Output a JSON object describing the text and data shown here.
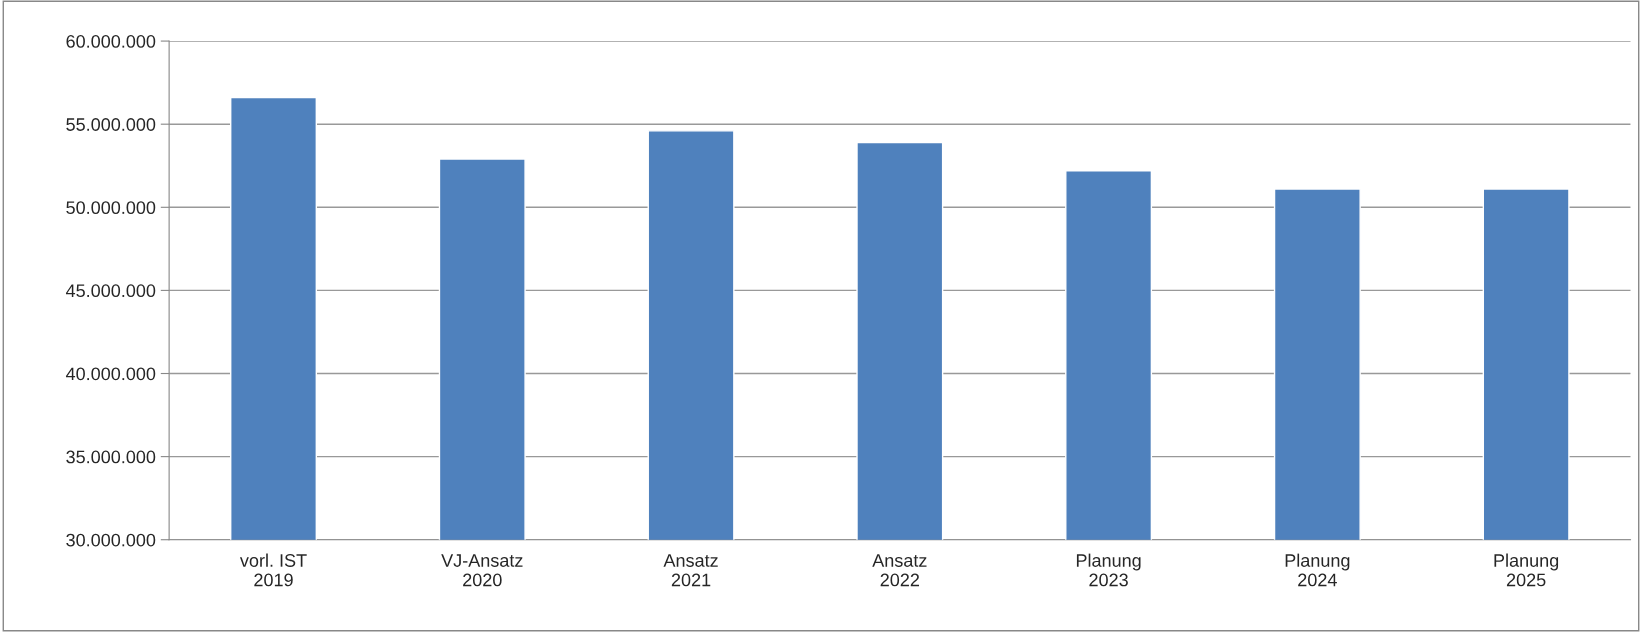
{
  "chart_data": {
    "type": "bar",
    "categories": [
      "vorl. IST\n2019",
      "VJ-Ansatz\n2020",
      "Ansatz\n2021",
      "Ansatz\n2022",
      "Planung\n2023",
      "Planung\n2024",
      "Planung\n2025"
    ],
    "values": [
      56600000,
      52900000,
      54600000,
      53900000,
      52200000,
      51100000,
      51100000
    ],
    "color": "#4f81bd",
    "ylim": [
      30000000,
      60000000
    ],
    "yticks": [
      {
        "value": 30000000,
        "label": "30.000.000"
      },
      {
        "value": 35000000,
        "label": "35.000.000"
      },
      {
        "value": 40000000,
        "label": "40.000.000"
      },
      {
        "value": 45000000,
        "label": "45.000.000"
      },
      {
        "value": 50000000,
        "label": "50.000.000"
      },
      {
        "value": 55000000,
        "label": "55.000.000"
      },
      {
        "value": 60000000,
        "label": "60.000.000"
      }
    ],
    "grid": "y",
    "legend": false
  }
}
